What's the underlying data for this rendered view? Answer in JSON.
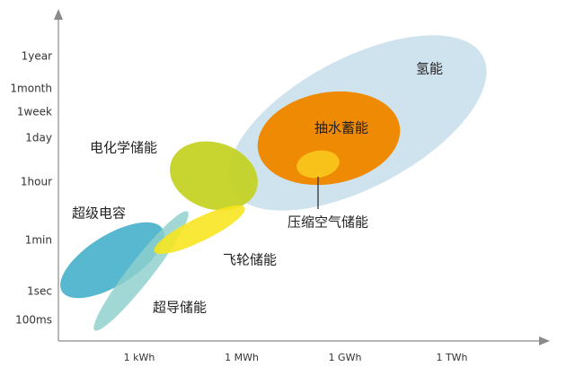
{
  "chart_data": {
    "type": "scatter",
    "title": "",
    "xlabel": "",
    "ylabel": "",
    "x_ticks": [
      "1 kWh",
      "1 MWh",
      "1 GWh",
      "1 TWh"
    ],
    "y_ticks": [
      "100ms",
      "1sec",
      "1min",
      "1hour",
      "1day",
      "1week",
      "1month",
      "1year"
    ],
    "grid": false,
    "regions": [
      {
        "name": "氢能",
        "color": "#cfe3ee"
      },
      {
        "name": "电化学储能",
        "color": "#c3d11e"
      },
      {
        "name": "飞轮储能",
        "color": "#f8e51b"
      },
      {
        "name": "超级电容",
        "color": "#4fb4cc"
      },
      {
        "name": "超导储能",
        "color": "#8ccfcc"
      },
      {
        "name": "抽水蓄能",
        "color": "#ef8a05"
      },
      {
        "name": "压缩空气储能",
        "color": "#f9c21a"
      }
    ]
  }
}
